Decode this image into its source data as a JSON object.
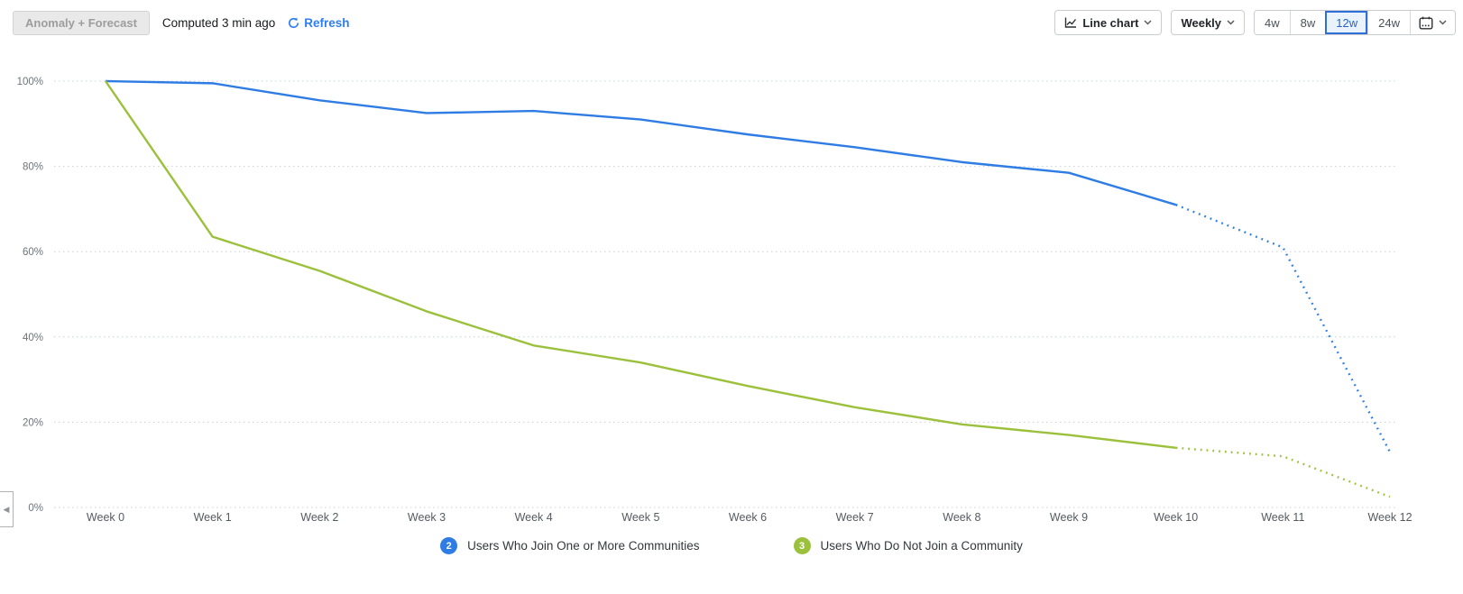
{
  "toolbar": {
    "anomaly_button_label": "Anomaly + Forecast",
    "computed_text": "Computed 3 min ago",
    "refresh_label": "Refresh",
    "chart_type_label": "Line chart",
    "interval_label": "Weekly",
    "ranges": [
      {
        "label": "4w",
        "selected": false
      },
      {
        "label": "8w",
        "selected": false
      },
      {
        "label": "12w",
        "selected": true
      },
      {
        "label": "24w",
        "selected": false
      }
    ]
  },
  "colors": {
    "accent_blue": "#2d7ff0",
    "selected_range_blue": "#2f6fd8",
    "series_blue": "#2e7ce4",
    "series_green": "#9bc13c"
  },
  "chart_data": {
    "type": "line",
    "title": "",
    "xlabel": "",
    "ylabel": "",
    "x_categories": [
      "Week 0",
      "Week 1",
      "Week 2",
      "Week 3",
      "Week 4",
      "Week 5",
      "Week 6",
      "Week 7",
      "Week 8",
      "Week 9",
      "Week 10",
      "Week 11",
      "Week 12"
    ],
    "y_ticks": [
      "0%",
      "20%",
      "40%",
      "60%",
      "80%",
      "100%"
    ],
    "ylim": [
      0,
      100
    ],
    "grid": "horizontal-dotted",
    "grid_color": "#c7d1dc",
    "axis_text_color": "#6e7479",
    "legend_position": "bottom",
    "forecast_style": "dotted",
    "series": [
      {
        "name": "Users Who Join One or More Communities",
        "legend_index": "2",
        "color": "#2e7ce4",
        "actual": [
          100,
          99.5,
          95.5,
          92.5,
          93,
          91,
          87.5,
          84.5,
          81,
          78.5,
          71
        ],
        "forecast": [
          71,
          61,
          13
        ]
      },
      {
        "name": "Users Who Do Not Join a Community",
        "legend_index": "3",
        "color": "#9bc13c",
        "actual": [
          100,
          63.5,
          55.5,
          46,
          38,
          34,
          28.5,
          23.5,
          19.5,
          17,
          14
        ],
        "forecast": [
          14,
          12,
          2.5
        ]
      }
    ]
  },
  "panel_toggle": {
    "icon_glyph": "◀"
  }
}
